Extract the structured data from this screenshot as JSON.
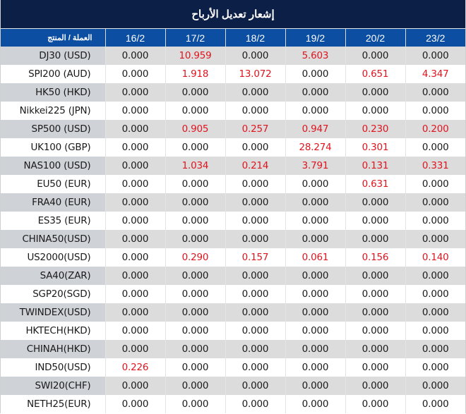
{
  "title": "إشعار تعديل الأرباح",
  "header": {
    "product_label": "العملة / المنتج",
    "dates": [
      "16/2",
      "17/2",
      "18/2",
      "19/2",
      "20/2",
      "23/2"
    ]
  },
  "colors": {
    "title_bg": "#0c1f47",
    "header_bg": "#0b4ea2",
    "highlight": "#e0141e",
    "row_shade": "#dcdcdc",
    "product_shade": "#cfd2d7"
  },
  "rows": [
    {
      "product": "DJ30 (USD)",
      "values": [
        "0.000",
        "10.959",
        "0.000",
        "5.603",
        "0.000",
        "0.000"
      ]
    },
    {
      "product": "SPI200 (AUD)",
      "values": [
        "0.000",
        "1.918",
        "13.072",
        "0.000",
        "0.651",
        "4.347"
      ]
    },
    {
      "product": "HK50 (HKD)",
      "values": [
        "0.000",
        "0.000",
        "0.000",
        "0.000",
        "0.000",
        "0.000"
      ]
    },
    {
      "product": "Nikkei225 (JPN)",
      "values": [
        "0.000",
        "0.000",
        "0.000",
        "0.000",
        "0.000",
        "0.000"
      ]
    },
    {
      "product": "SP500 (USD)",
      "values": [
        "0.000",
        "0.905",
        "0.257",
        "0.947",
        "0.230",
        "0.200"
      ]
    },
    {
      "product": "UK100 (GBP)",
      "values": [
        "0.000",
        "0.000",
        "0.000",
        "28.274",
        "0.301",
        "0.000"
      ]
    },
    {
      "product": "NAS100 (USD)",
      "values": [
        "0.000",
        "1.034",
        "0.214",
        "3.791",
        "0.131",
        "0.331"
      ]
    },
    {
      "product": "EU50 (EUR)",
      "values": [
        "0.000",
        "0.000",
        "0.000",
        "0.000",
        "0.631",
        "0.000"
      ]
    },
    {
      "product": "FRA40 (EUR)",
      "values": [
        "0.000",
        "0.000",
        "0.000",
        "0.000",
        "0.000",
        "0.000"
      ]
    },
    {
      "product": "ES35 (EUR)",
      "values": [
        "0.000",
        "0.000",
        "0.000",
        "0.000",
        "0.000",
        "0.000"
      ]
    },
    {
      "product": "CHINA50(USD)",
      "values": [
        "0.000",
        "0.000",
        "0.000",
        "0.000",
        "0.000",
        "0.000"
      ]
    },
    {
      "product": "US2000(USD)",
      "values": [
        "0.000",
        "0.290",
        "0.157",
        "0.061",
        "0.156",
        "0.140"
      ]
    },
    {
      "product": "SA40(ZAR)",
      "values": [
        "0.000",
        "0.000",
        "0.000",
        "0.000",
        "0.000",
        "0.000"
      ]
    },
    {
      "product": "SGP20(SGD)",
      "values": [
        "0.000",
        "0.000",
        "0.000",
        "0.000",
        "0.000",
        "0.000"
      ]
    },
    {
      "product": "TWINDEX(USD)",
      "values": [
        "0.000",
        "0.000",
        "0.000",
        "0.000",
        "0.000",
        "0.000"
      ]
    },
    {
      "product": "HKTECH(HKD)",
      "values": [
        "0.000",
        "0.000",
        "0.000",
        "0.000",
        "0.000",
        "0.000"
      ]
    },
    {
      "product": "CHINAH(HKD)",
      "values": [
        "0.000",
        "0.000",
        "0.000",
        "0.000",
        "0.000",
        "0.000"
      ]
    },
    {
      "product": "IND50(USD)",
      "values": [
        "0.226",
        "0.000",
        "0.000",
        "0.000",
        "0.000",
        "0.000"
      ]
    },
    {
      "product": "SWI20(CHF)",
      "values": [
        "0.000",
        "0.000",
        "0.000",
        "0.000",
        "0.000",
        "0.000"
      ]
    },
    {
      "product": "NETH25(EUR)",
      "values": [
        "0.000",
        "0.000",
        "0.000",
        "0.000",
        "0.000",
        "0.000"
      ]
    }
  ]
}
